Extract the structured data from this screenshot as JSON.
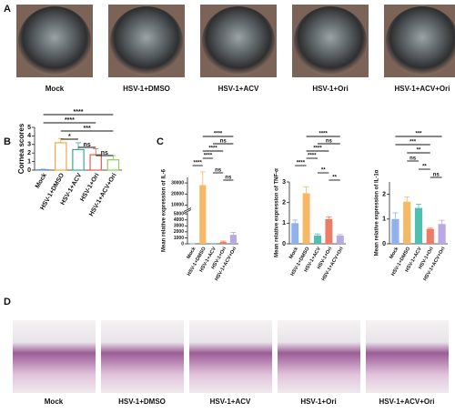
{
  "panel_labels": [
    "A",
    "B",
    "C",
    "D"
  ],
  "photos_a": [
    "Mock",
    "HSV-1+DMSO",
    "HSV-1+ACV",
    "HSV-1+Ori",
    "HSV-1+ACV+Ori"
  ],
  "photos_d": [
    "Mock",
    "HSV-1+DMSO",
    "HSV-1+ACV",
    "HSV-1+Ori",
    "HSV-1+ACV+Ori"
  ],
  "chart_data": [
    {
      "type": "bar",
      "ylabel": "Cornea scores",
      "outline": true,
      "categories": [
        "Mock",
        "HSV-1+DMSO",
        "HSV-1+ACV",
        "HSV-1+Ori",
        "HSV-1+ACV+Ori"
      ],
      "values": [
        0.05,
        3.2,
        2.4,
        1.8,
        1.2
      ],
      "errors": [
        0.05,
        0.5,
        0.8,
        0.7,
        0.5
      ],
      "colors": [
        "#6b8fd6",
        "#f2a64a",
        "#3aa99b",
        "#e4604a",
        "#8ccf5a"
      ],
      "ylim": [
        0,
        5
      ],
      "yticks": [
        0,
        1,
        2,
        3,
        4,
        5
      ],
      "significance": [
        "****",
        "****",
        "***",
        "*",
        "ns",
        "ns"
      ]
    },
    {
      "type": "bar",
      "ylabel": "Mean relative expression of IL-6",
      "categories": [
        "Mock",
        "HSV-1+DMSO",
        "HSV-1+ACV",
        "HSV-1+Ori",
        "HSV-1+ACV+Ori"
      ],
      "values": [
        1,
        28000,
        20,
        300,
        1500
      ],
      "errors": [
        1,
        12000,
        20,
        150,
        400
      ],
      "colors": [
        "#8fb2ee",
        "#f6b865",
        "#4fbfb0",
        "#ee7b63",
        "#b8a8e4"
      ],
      "ylim": [
        0,
        35000
      ],
      "ybreak": [
        5000,
        8000
      ],
      "yticks": [
        0,
        1000,
        2000,
        3000,
        4000,
        5000,
        10000,
        20000,
        30000
      ],
      "significance": [
        "****",
        "ns",
        "****",
        "****",
        "****",
        "ns",
        "ns"
      ]
    },
    {
      "type": "bar",
      "ylabel": "Mean relative expression of TNF-α",
      "categories": [
        "Mock",
        "HSV-1+DMSO",
        "HSV-1+ACV",
        "HSV-1+Ori",
        "HSV-1+ACV+Ori"
      ],
      "values": [
        1.0,
        2.45,
        0.4,
        1.2,
        0.4
      ],
      "errors": [
        0.15,
        0.3,
        0.08,
        0.1,
        0.05
      ],
      "colors": [
        "#8fb2ee",
        "#f6b865",
        "#4fbfb0",
        "#ee7b63",
        "#b8a8e4"
      ],
      "ylim": [
        0,
        3
      ],
      "yticks": [
        0,
        1,
        2,
        3
      ],
      "significance": [
        "****",
        "ns",
        "****",
        "****",
        "****",
        "**",
        "**"
      ]
    },
    {
      "type": "bar",
      "ylabel": "Mean relative expression of IL-1α",
      "categories": [
        "Mock",
        "HSV-1+DMSO",
        "HSV-1+ACV",
        "HSV-1+Ori",
        "HSV-1+ACV+Ori"
      ],
      "values": [
        1.0,
        1.7,
        1.45,
        0.6,
        0.8
      ],
      "errors": [
        0.25,
        0.2,
        0.15,
        0.03,
        0.15
      ],
      "colors": [
        "#8fb2ee",
        "#f6b865",
        "#4fbfb0",
        "#ee7b63",
        "#b8a8e4"
      ],
      "ylim": [
        0,
        2.5
      ],
      "yticks": [
        0,
        1,
        2
      ],
      "significance": [
        "***",
        "***",
        "**",
        "ns",
        "**",
        "ns"
      ]
    }
  ]
}
